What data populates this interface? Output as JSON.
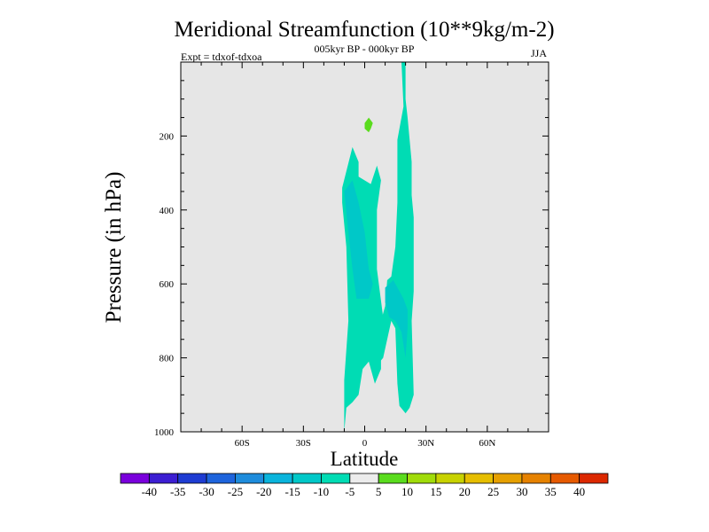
{
  "chart_data": {
    "type": "heatmap",
    "title": "Meridional Streamfunction (10**9kg/m-2)",
    "subtitle_center": "005kyr BP - 000kyr BP",
    "subtitle_left": "Expt = tdxof-tdxoa",
    "subtitle_right": "JJA",
    "xlabel": "Latitude",
    "ylabel": "Pressure (in hPa)",
    "xlim": [
      -90,
      90
    ],
    "ylim": [
      1000,
      0
    ],
    "x_ticks": [
      -60,
      -30,
      0,
      30,
      60
    ],
    "x_tick_labels": [
      "60S",
      "30S",
      "0",
      "30N",
      "60N"
    ],
    "y_ticks": [
      200,
      400,
      600,
      800,
      1000
    ],
    "y_tick_labels": [
      "200",
      "400",
      "600",
      "800",
      "1000"
    ],
    "background_color": "#e6e6e6",
    "colorbar": {
      "labels": [
        "-40",
        "-35",
        "-30",
        "-25",
        "-20",
        "-15",
        "-10",
        "-5",
        "5",
        "10",
        "15",
        "20",
        "25",
        "30",
        "35",
        "40"
      ],
      "colors": [
        "#7a00dc",
        "#3c1ed2",
        "#1e3cd2",
        "#1e64dc",
        "#1e8cdc",
        "#0ab4dc",
        "#00c8c8",
        "#00dcb4",
        "#ececec",
        "#5adc1e",
        "#a0dc0a",
        "#c8d200",
        "#e6be00",
        "#e6a000",
        "#e68200",
        "#e65a00",
        "#dc2800"
      ]
    },
    "regions": [
      {
        "level": "-10 to -5",
        "color": "#00dcb4",
        "points": [
          [
            -10,
            1000
          ],
          [
            -10,
            860
          ],
          [
            -8,
            700
          ],
          [
            -9,
            500
          ],
          [
            -11,
            380
          ],
          [
            -11,
            340
          ],
          [
            -6,
            230
          ],
          [
            -3,
            270
          ],
          [
            -3,
            310
          ],
          [
            3,
            330
          ],
          [
            6,
            280
          ],
          [
            8,
            320
          ],
          [
            6,
            400
          ],
          [
            6,
            560
          ],
          [
            9,
            690
          ],
          [
            8,
            800
          ],
          [
            8,
            830
          ],
          [
            5,
            870
          ],
          [
            2,
            810
          ],
          [
            -1,
            830
          ],
          [
            -3,
            900
          ],
          [
            -6,
            920
          ],
          [
            -9,
            935
          ]
        ]
      },
      {
        "level": "-10 to -5",
        "color": "#00dcb4",
        "points": [
          [
            18,
            0
          ],
          [
            20,
            0
          ],
          [
            20,
            100
          ],
          [
            21,
            150
          ],
          [
            23,
            270
          ],
          [
            23,
            360
          ],
          [
            24,
            420
          ],
          [
            24,
            620
          ],
          [
            23,
            700
          ],
          [
            24,
            900
          ],
          [
            22,
            935
          ],
          [
            20,
            950
          ],
          [
            17,
            930
          ],
          [
            16,
            870
          ],
          [
            15,
            720
          ],
          [
            13,
            700
          ],
          [
            9,
            800
          ],
          [
            6,
            820
          ],
          [
            5,
            760
          ],
          [
            10,
            660
          ],
          [
            11,
            590
          ],
          [
            13,
            580
          ],
          [
            15,
            500
          ],
          [
            16,
            380
          ],
          [
            16,
            210
          ],
          [
            19,
            120
          ]
        ]
      },
      {
        "level": "-15 to -10",
        "color": "#00c8c8",
        "points": [
          [
            -10,
            350
          ],
          [
            -6,
            320
          ],
          [
            -3,
            380
          ],
          [
            0,
            460
          ],
          [
            2,
            560
          ],
          [
            4,
            600
          ],
          [
            2,
            640
          ],
          [
            -4,
            640
          ],
          [
            -6,
            560
          ],
          [
            -8,
            460
          ]
        ]
      },
      {
        "level": "-15 to -10",
        "color": "#00c8c8",
        "points": [
          [
            10,
            610
          ],
          [
            12,
            600
          ],
          [
            14,
            590
          ],
          [
            16,
            610
          ],
          [
            19,
            640
          ],
          [
            21,
            670
          ],
          [
            21,
            720
          ],
          [
            20,
            800
          ],
          [
            18,
            730
          ],
          [
            15,
            700
          ],
          [
            12,
            690
          ],
          [
            10,
            650
          ]
        ]
      },
      {
        "level": "5 to 10",
        "color": "#5adc1e",
        "points": [
          [
            2,
            150
          ],
          [
            4,
            165
          ],
          [
            3,
            180
          ],
          [
            2,
            190
          ],
          [
            0,
            180
          ],
          [
            0,
            165
          ]
        ]
      }
    ]
  }
}
